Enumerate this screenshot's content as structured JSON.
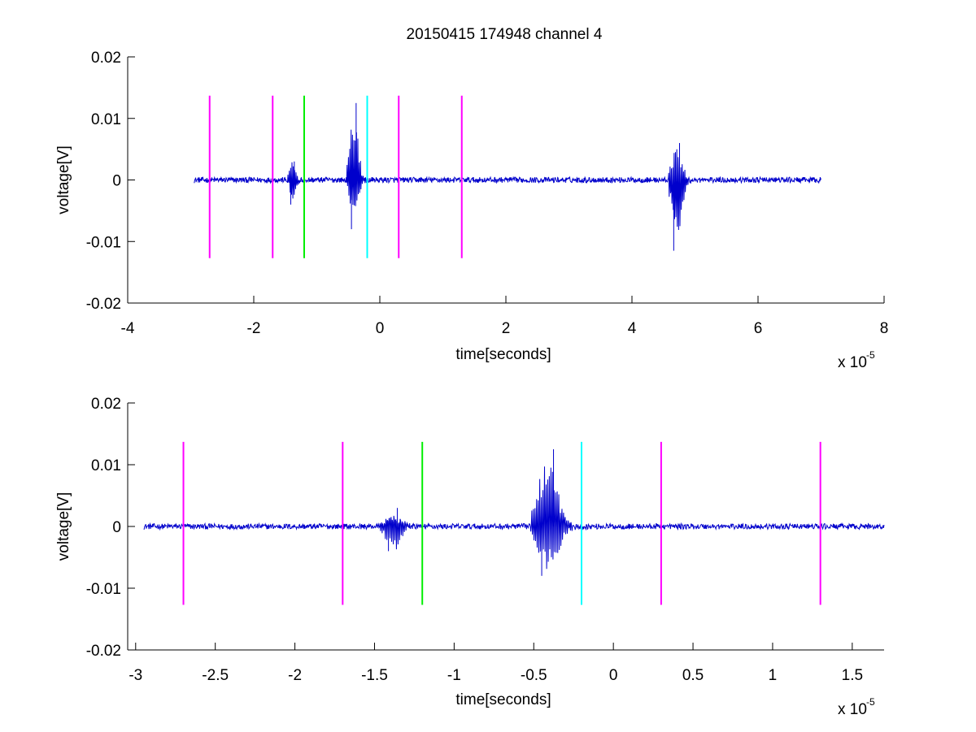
{
  "figure": {
    "title": "20150415 174948 channel 4",
    "background": "#ffffff"
  },
  "chart_data": [
    {
      "type": "line",
      "title": "20150415 174948 channel 4",
      "xlabel": "time[seconds]",
      "ylabel": "voltage[V]",
      "x_multiplier_label": "x 10",
      "x_multiplier_exponent": "-5",
      "x_scale": 1e-05,
      "xlim": [
        -4,
        8
      ],
      "ylim": [
        -0.02,
        0.02
      ],
      "xticks": [
        -4,
        -2,
        0,
        2,
        4,
        6,
        8
      ],
      "xtick_labels": [
        "-4",
        "-2",
        "0",
        "2",
        "4",
        "6",
        "8"
      ],
      "yticks": [
        -0.02,
        -0.01,
        0,
        0.01,
        0.02
      ],
      "ytick_labels": [
        "-0.02",
        "-0.01",
        "0",
        "0.01",
        "0.02"
      ],
      "grid": false,
      "series": [
        {
          "color": "#0000cc",
          "x_range": [
            -2.95,
            7.0
          ],
          "baseline": 0,
          "bursts": [
            {
              "x": [
                -1.45,
                -1.3
              ],
              "max": 0.003,
              "min": -0.004
            },
            {
              "x": [
                -0.5,
                -0.3
              ],
              "max": 0.0125,
              "min": -0.008
            },
            {
              "x": [
                4.6,
                4.85
              ],
              "max": 0.006,
              "min": -0.0115
            }
          ]
        }
      ],
      "markers": [
        {
          "x": -2.7,
          "y_range": [
            -0.0127,
            0.0137
          ],
          "color": "#ff00ff"
        },
        {
          "x": -1.7,
          "y_range": [
            -0.0127,
            0.0137
          ],
          "color": "#ff00ff"
        },
        {
          "x": -1.2,
          "y_range": [
            -0.0127,
            0.0137
          ],
          "color": "#00ee00"
        },
        {
          "x": -0.2,
          "y_range": [
            -0.0127,
            0.0137
          ],
          "color": "#00ffff"
        },
        {
          "x": 0.3,
          "y_range": [
            -0.0127,
            0.0137
          ],
          "color": "#ff00ff"
        },
        {
          "x": 1.3,
          "y_range": [
            -0.0127,
            0.0137
          ],
          "color": "#ff00ff"
        }
      ]
    },
    {
      "type": "line",
      "title": "",
      "xlabel": "time[seconds]",
      "ylabel": "voltage[V]",
      "x_multiplier_label": "x 10",
      "x_multiplier_exponent": "-5",
      "x_scale": 1e-05,
      "xlim": [
        -3.05,
        1.7
      ],
      "ylim": [
        -0.02,
        0.02
      ],
      "xticks": [
        -3,
        -2.5,
        -2,
        -1.5,
        -1,
        -0.5,
        0,
        0.5,
        1,
        1.5
      ],
      "xtick_labels": [
        "-3",
        "-2.5",
        "-2",
        "-1.5",
        "-1",
        "-0.5",
        "0",
        "0.5",
        "1",
        "1.5"
      ],
      "yticks": [
        -0.02,
        -0.01,
        0,
        0.01,
        0.02
      ],
      "ytick_labels": [
        "-0.02",
        "-0.01",
        "0",
        "0.01",
        "0.02"
      ],
      "grid": false,
      "series": [
        {
          "color": "#0000cc",
          "x_range": [
            -2.95,
            1.7
          ],
          "baseline": 0,
          "bursts": [
            {
              "x": [
                -1.45,
                -1.3
              ],
              "max": 0.003,
              "min": -0.004
            },
            {
              "x": [
                -0.5,
                -0.3
              ],
              "max": 0.0125,
              "min": -0.008
            }
          ]
        }
      ],
      "markers": [
        {
          "x": -2.7,
          "y_range": [
            -0.0127,
            0.0137
          ],
          "color": "#ff00ff"
        },
        {
          "x": -1.7,
          "y_range": [
            -0.0127,
            0.0137
          ],
          "color": "#ff00ff"
        },
        {
          "x": -1.2,
          "y_range": [
            -0.0127,
            0.0137
          ],
          "color": "#00ee00"
        },
        {
          "x": -0.2,
          "y_range": [
            -0.0127,
            0.0137
          ],
          "color": "#00ffff"
        },
        {
          "x": 0.3,
          "y_range": [
            -0.0127,
            0.0137
          ],
          "color": "#ff00ff"
        },
        {
          "x": 1.3,
          "y_range": [
            -0.0127,
            0.0137
          ],
          "color": "#ff00ff"
        }
      ]
    }
  ]
}
